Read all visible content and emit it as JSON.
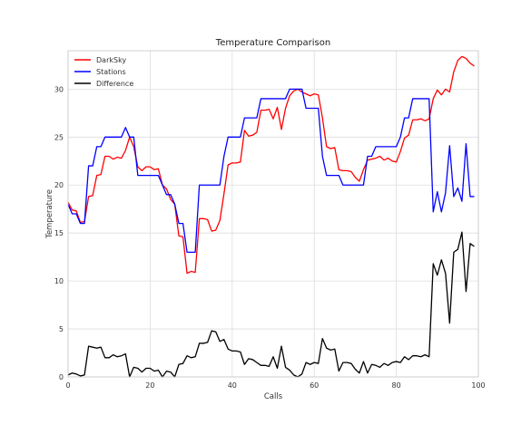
{
  "chart_data": {
    "type": "line",
    "title": "Temperature Comparison",
    "xlabel": "Calls",
    "ylabel": "Temperature",
    "xlim": [
      0,
      100
    ],
    "ylim": [
      0,
      34
    ],
    "xticks": [
      0,
      20,
      40,
      60,
      80,
      100
    ],
    "yticks": [
      0,
      5,
      10,
      15,
      20,
      25,
      30
    ],
    "grid": true,
    "legend": "top-left",
    "x": [
      0,
      1,
      2,
      3,
      4,
      5,
      6,
      7,
      8,
      9,
      10,
      11,
      12,
      13,
      14,
      15,
      16,
      17,
      18,
      19,
      20,
      21,
      22,
      23,
      24,
      25,
      26,
      27,
      28,
      29,
      30,
      31,
      32,
      33,
      34,
      35,
      36,
      37,
      38,
      39,
      40,
      41,
      42,
      43,
      44,
      45,
      46,
      47,
      48,
      49,
      50,
      51,
      52,
      53,
      54,
      55,
      56,
      57,
      58,
      59,
      60,
      61,
      62,
      63,
      64,
      65,
      66,
      67,
      68,
      69,
      70,
      71,
      72,
      73,
      74,
      75,
      76,
      77,
      78,
      79,
      80,
      81,
      82,
      83,
      84,
      85,
      86,
      87,
      88,
      89,
      90,
      91,
      92,
      93,
      94,
      95,
      96,
      97,
      98,
      99
    ],
    "series": [
      {
        "name": "DarkSky",
        "color": "#ff0000",
        "values": [
          18.2,
          17.4,
          17.3,
          16.1,
          16.2,
          18.8,
          18.9,
          21.0,
          21.1,
          23.0,
          23.0,
          22.7,
          22.9,
          22.8,
          23.6,
          25.0,
          24.0,
          21.9,
          21.5,
          21.9,
          21.9,
          21.6,
          21.7,
          20.0,
          19.6,
          18.5,
          18.0,
          14.7,
          14.6,
          10.8,
          11.0,
          10.9,
          16.5,
          16.5,
          16.4,
          15.2,
          15.3,
          16.3,
          19.1,
          22.1,
          22.3,
          22.3,
          22.4,
          25.7,
          25.1,
          25.2,
          25.5,
          27.8,
          27.8,
          27.9,
          26.9,
          28.1,
          25.8,
          28.0,
          29.3,
          29.8,
          30.0,
          29.7,
          29.5,
          29.3,
          29.5,
          29.4,
          27.0,
          24.0,
          23.8,
          23.9,
          21.6,
          21.5,
          21.5,
          21.4,
          20.8,
          20.4,
          21.6,
          22.6,
          22.7,
          22.8,
          23.0,
          22.6,
          22.8,
          22.5,
          22.4,
          23.5,
          24.9,
          25.2,
          26.8,
          26.8,
          26.9,
          26.7,
          26.9,
          29.0,
          29.9,
          29.4,
          30.0,
          29.7,
          31.8,
          33.0,
          33.4,
          33.2,
          32.7,
          32.4
        ]
      },
      {
        "name": "Stations",
        "color": "#0000ff",
        "values": [
          18.0,
          17.0,
          17.0,
          16.0,
          16.0,
          22.0,
          22.0,
          24.0,
          24.0,
          25.0,
          25.0,
          25.0,
          25.0,
          25.0,
          26.0,
          25.0,
          25.0,
          21.0,
          21.0,
          21.0,
          21.0,
          21.0,
          21.0,
          20.0,
          19.0,
          19.0,
          18.0,
          16.0,
          16.0,
          13.0,
          13.0,
          13.0,
          20.0,
          20.0,
          20.0,
          20.0,
          20.0,
          20.0,
          23.0,
          25.0,
          25.0,
          25.0,
          25.0,
          27.0,
          27.0,
          27.0,
          27.0,
          29.0,
          29.0,
          29.0,
          29.0,
          29.0,
          29.0,
          29.0,
          30.0,
          30.0,
          30.0,
          30.0,
          28.0,
          28.0,
          28.0,
          28.0,
          23.0,
          21.0,
          21.0,
          21.0,
          21.0,
          20.0,
          20.0,
          20.0,
          20.0,
          20.0,
          20.0,
          23.0,
          23.0,
          24.0,
          24.0,
          24.0,
          24.0,
          24.0,
          24.0,
          25.0,
          27.0,
          27.0,
          29.0,
          29.0,
          29.0,
          29.0,
          29.0,
          17.2,
          19.3,
          17.2,
          19.2,
          24.1,
          18.8,
          19.7,
          18.3,
          24.3,
          18.8,
          18.8
        ]
      },
      {
        "name": "Difference",
        "color": "#000000",
        "values": [
          0.2,
          0.4,
          0.3,
          0.1,
          0.2,
          3.2,
          3.1,
          3.0,
          3.1,
          2.0,
          2.0,
          2.3,
          2.1,
          2.2,
          2.4,
          0.0,
          1.0,
          0.9,
          0.5,
          0.9,
          0.9,
          0.6,
          0.7,
          0.0,
          0.6,
          0.5,
          0.0,
          1.3,
          1.4,
          2.2,
          2.0,
          2.1,
          3.5,
          3.5,
          3.6,
          4.8,
          4.7,
          3.7,
          3.9,
          2.9,
          2.7,
          2.7,
          2.6,
          1.3,
          1.9,
          1.8,
          1.5,
          1.2,
          1.2,
          1.1,
          2.1,
          0.9,
          3.2,
          1.0,
          0.7,
          0.2,
          0.0,
          0.3,
          1.5,
          1.3,
          1.5,
          1.4,
          4.0,
          3.0,
          2.8,
          2.9,
          0.6,
          1.5,
          1.5,
          1.4,
          0.8,
          0.4,
          1.6,
          0.4,
          1.3,
          1.2,
          1.0,
          1.4,
          1.2,
          1.5,
          1.6,
          1.5,
          2.1,
          1.8,
          2.2,
          2.2,
          2.1,
          2.3,
          2.1,
          11.8,
          10.6,
          12.2,
          10.8,
          5.6,
          13.0,
          13.3,
          15.1,
          8.9,
          13.9,
          13.6
        ]
      }
    ]
  }
}
